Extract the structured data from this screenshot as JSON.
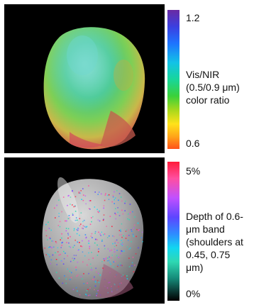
{
  "colorbar_top": {
    "max_label": "1.2",
    "min_label": "0.6",
    "description": "Vis/NIR\n(0.5/0.9 μm)\ncolor ratio"
  },
  "colorbar_bottom": {
    "max_label": "5%",
    "min_label": "0%",
    "description": "Depth of 0.6-\nμm band\n(shoulders at\n0.45, 0.75\nμm)"
  }
}
